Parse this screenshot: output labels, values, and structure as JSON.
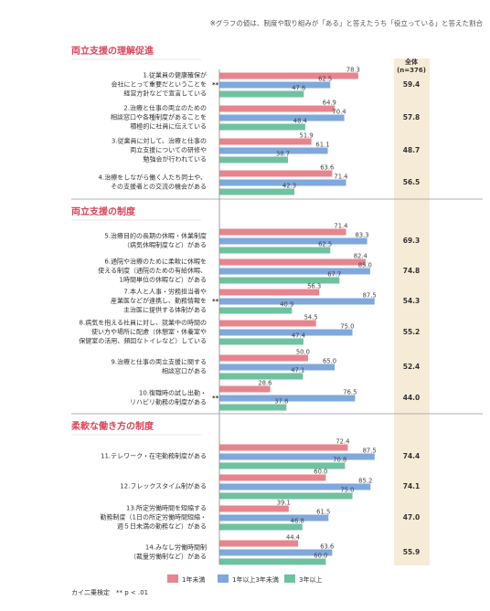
{
  "chart_data": {
    "type": "bar",
    "note": "※グラフの値は、制度や取り組みが「ある」と答えたうち「役立っている」と答えた割合",
    "total_header": [
      "全体",
      "(n=376)"
    ],
    "series": [
      {
        "name": "1年未満",
        "color": "#e8848d"
      },
      {
        "name": "1年以上3年未満",
        "color": "#7fa8dc"
      },
      {
        "name": "3年以上",
        "color": "#6fc2a0"
      }
    ],
    "footnote": "カイ二乗検定　** p < .01",
    "section_color": "#d9475b",
    "sections": [
      {
        "title": "両立支援の理解促進",
        "items": [
          {
            "label": [
              "1.従業員の健康確保が",
              "会社にとって重要だということを",
              "経営方針などで宣言している"
            ],
            "values": [
              78.3,
              62.5,
              47.6
            ],
            "total": "59.4",
            "sig": "**"
          },
          {
            "label": [
              "2.治療と仕事の両立のための",
              "相談窓口や各種制度があることを",
              "積極的に社員に伝えている"
            ],
            "values": [
              64.9,
              70.4,
              48.4
            ],
            "total": "57.8",
            "sig": ""
          },
          {
            "label": [
              "3.従業員に対して、治療と仕事の",
              "両立支援についての研修や",
              "勉強会が行われている"
            ],
            "values": [
              51.9,
              61.1,
              38.7
            ],
            "total": "48.7",
            "sig": ""
          },
          {
            "label": [
              "4.治療をしながら働く人たち同士や、",
              "その支援者との交流の機会がある"
            ],
            "values": [
              63.6,
              71.4,
              42.3
            ],
            "total": "56.5",
            "sig": ""
          }
        ]
      },
      {
        "title": "両立支援の制度",
        "items": [
          {
            "label": [
              "5.治療目的の長期の休暇・休業制度",
              "（病気休暇制度など）がある"
            ],
            "values": [
              71.4,
              83.3,
              62.5
            ],
            "total": "69.3",
            "sig": ""
          },
          {
            "label": [
              "6.通院や治療のために柔軟に休暇を",
              "使える制度（通院のための有給休暇、",
              "1時間単位の休暇など）がある"
            ],
            "values": [
              82.4,
              85.0,
              67.7
            ],
            "total": "74.8",
            "sig": ""
          },
          {
            "label": [
              "7.本人と人事・労務担当者や",
              "産業医などが連携し、勤務情報を",
              "主治医に提供する体制がある"
            ],
            "values": [
              56.3,
              87.5,
              40.9
            ],
            "total": "54.3",
            "sig": "**"
          },
          {
            "label": [
              "8.病気を抱える社員に対し、就業中の時間の",
              "使い方や場所に配慮（休憩室・休養室や",
              "保健室の活用、頻回なトイレなど）している"
            ],
            "values": [
              54.5,
              75.0,
              47.4
            ],
            "total": "55.2",
            "sig": ""
          },
          {
            "label": [
              "9.治療と仕事の両立支援に関する",
              "相談窓口がある"
            ],
            "values": [
              50.0,
              65.0,
              47.1
            ],
            "total": "52.4",
            "sig": ""
          },
          {
            "label": [
              "10.復職時の試し出勤・",
              "リハビリ勤務の制度がある"
            ],
            "values": [
              28.6,
              76.5,
              37.8
            ],
            "total": "44.0",
            "sig": "**"
          }
        ]
      },
      {
        "title": "柔軟な働き方の制度",
        "items": [
          {
            "label": [
              "11.テレワーク・在宅勤務制度がある"
            ],
            "values": [
              72.4,
              87.5,
              70.8
            ],
            "total": "74.4",
            "sig": ""
          },
          {
            "label": [
              "12.フレックスタイム制がある"
            ],
            "values": [
              60.0,
              85.2,
              75.0
            ],
            "total": "74.1",
            "sig": ""
          },
          {
            "label": [
              "13.所定労働時間を短縮する",
              "勤務制度（1日の所定労働時間短縮・",
              "週５日未満の勤務など）がある"
            ],
            "values": [
              39.1,
              61.5,
              46.8
            ],
            "total": "47.0",
            "sig": ""
          },
          {
            "label": [
              "14.みなし労働時間制",
              "（裁量労働制など）がある"
            ],
            "values": [
              44.4,
              63.6,
              60.0
            ],
            "total": "55.9",
            "sig": ""
          }
        ]
      }
    ]
  }
}
